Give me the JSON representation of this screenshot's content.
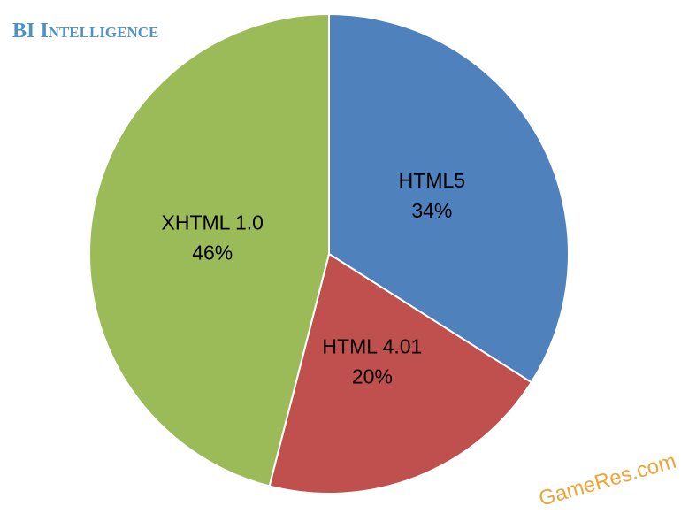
{
  "chart_data": {
    "type": "pie",
    "source": "BI Intelligence",
    "watermark": "GameRes.com",
    "categories": [
      "HTML5",
      "HTML 4.01",
      "XHTML 1.0"
    ],
    "values": [
      34,
      20,
      46
    ],
    "value_labels": [
      "34%",
      "20%",
      "46%"
    ],
    "colors": [
      "#4f81bd",
      "#c0504d",
      "#9bbb59"
    ]
  }
}
